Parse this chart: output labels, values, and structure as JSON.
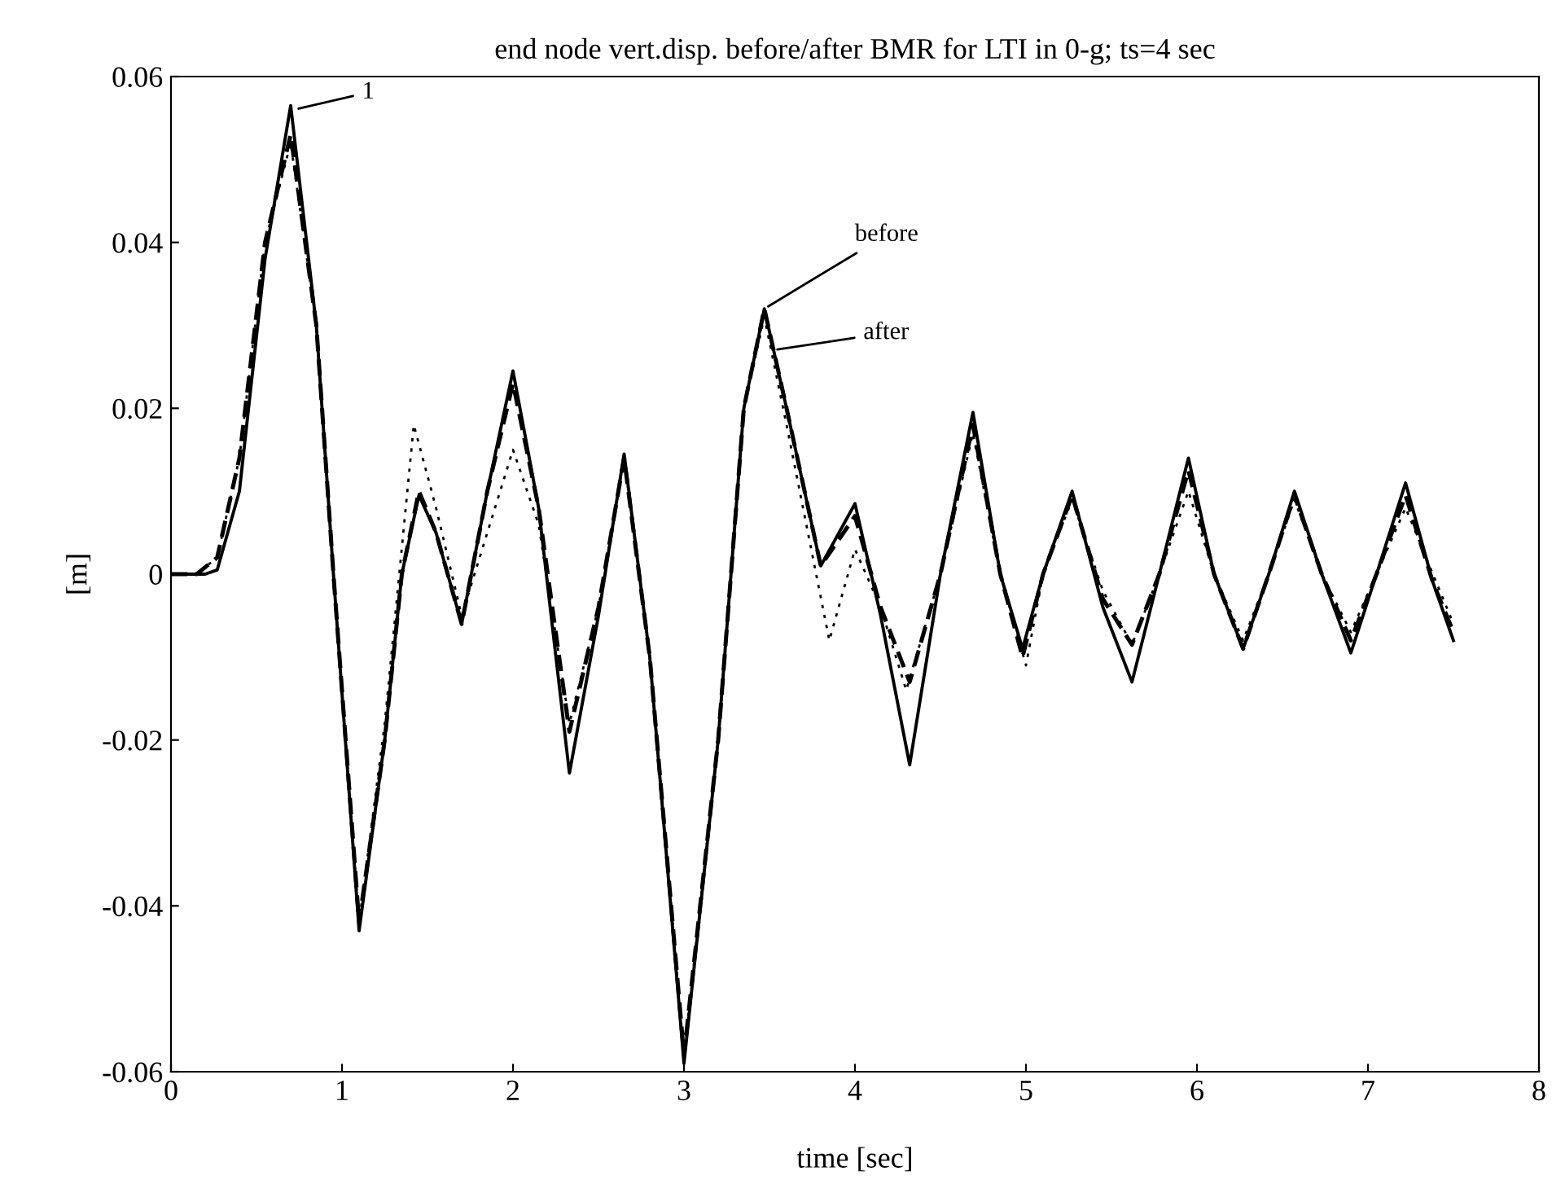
{
  "chart_data": {
    "type": "line",
    "title": "end node vert.disp. before/after BMR for LTI in 0-g; ts=4 sec",
    "xlabel": "time [sec]",
    "ylabel": "[m]",
    "xlim": [
      0,
      8
    ],
    "ylim": [
      -0.06,
      0.06
    ],
    "xticks": [
      0,
      1,
      2,
      3,
      4,
      5,
      6,
      7,
      8
    ],
    "yticks": [
      -0.06,
      -0.04,
      -0.02,
      0,
      0.02,
      0.04,
      0.06
    ],
    "grid": false,
    "legend": false,
    "series": [
      {
        "color": "#000000",
        "line_style": "solid",
        "x": [
          0,
          0.2,
          0.27,
          0.4,
          0.55,
          0.7,
          0.85,
          0.95,
          1.1,
          1.25,
          1.35,
          1.45,
          1.55,
          1.7,
          1.85,
          2.0,
          2.15,
          2.33,
          2.5,
          2.65,
          2.8,
          3.0,
          3.2,
          3.35,
          3.47,
          3.6,
          3.8,
          4.0,
          4.15,
          4.32,
          4.5,
          4.69,
          4.85,
          4.98,
          5.1,
          5.27,
          5.45,
          5.62,
          5.78,
          5.95,
          6.1,
          6.27,
          6.42,
          6.57,
          6.73,
          6.9,
          7.05,
          7.22,
          7.38,
          7.5
        ],
        "values": [
          0,
          0,
          0.0005,
          0.01,
          0.038,
          0.0565,
          0.03,
          0.0,
          -0.043,
          -0.02,
          0.0,
          0.0095,
          0.005,
          -0.006,
          0.01,
          0.0245,
          0.008,
          -0.024,
          -0.005,
          0.0145,
          -0.01,
          -0.059,
          -0.02,
          0.02,
          0.032,
          0.02,
          0.001,
          0.0085,
          -0.005,
          -0.023,
          0.0,
          0.0195,
          0.0,
          -0.009,
          0.0,
          0.01,
          -0.004,
          -0.013,
          0.0,
          0.014,
          0.0,
          -0.009,
          0.0,
          0.01,
          0.0,
          -0.0095,
          0.0,
          0.011,
          -0.001,
          -0.008
        ]
      },
      {
        "color": "#000000",
        "line_style": "dashed",
        "x": [
          0,
          0.15,
          0.27,
          0.4,
          0.55,
          0.7,
          0.85,
          0.95,
          1.1,
          1.25,
          1.35,
          1.45,
          1.55,
          1.7,
          1.85,
          2.0,
          2.15,
          2.33,
          2.5,
          2.65,
          2.8,
          3.0,
          3.2,
          3.35,
          3.47,
          3.6,
          3.8,
          4.0,
          4.15,
          4.32,
          4.5,
          4.69,
          4.85,
          4.98,
          5.1,
          5.27,
          5.45,
          5.62,
          5.78,
          5.95,
          6.1,
          6.27,
          6.42,
          6.57,
          6.73,
          6.9,
          7.05,
          7.22,
          7.38,
          7.5
        ],
        "values": [
          0,
          0,
          0.002,
          0.014,
          0.04,
          0.053,
          0.03,
          0.0,
          -0.042,
          -0.02,
          0.0,
          0.01,
          0.005,
          -0.006,
          0.01,
          0.023,
          0.008,
          -0.019,
          -0.004,
          0.014,
          -0.01,
          -0.058,
          -0.02,
          0.02,
          0.032,
          0.02,
          0.001,
          0.007,
          -0.004,
          -0.013,
          0.0,
          0.018,
          0.0,
          -0.01,
          0.0,
          0.0095,
          -0.003,
          -0.0085,
          0.0,
          0.0125,
          0.0,
          -0.009,
          0.0,
          0.0095,
          0.0,
          -0.008,
          0.0,
          0.0095,
          -0.001,
          -0.007
        ]
      },
      {
        "color": "#000000",
        "line_style": "dotted",
        "x": [
          0,
          0.15,
          0.27,
          0.4,
          0.55,
          0.7,
          0.85,
          0.95,
          1.1,
          1.25,
          1.42,
          1.55,
          1.7,
          1.85,
          2.0,
          2.15,
          2.33,
          2.5,
          2.65,
          2.8,
          3.0,
          3.2,
          3.35,
          3.47,
          3.6,
          3.85,
          4.0,
          4.15,
          4.3,
          4.5,
          4.69,
          4.85,
          5.0,
          5.1,
          5.27,
          5.45,
          5.62,
          5.78,
          5.95,
          6.1,
          6.27,
          6.42,
          6.57,
          6.73,
          6.9,
          7.05,
          7.22,
          7.38,
          7.5
        ],
        "values": [
          0,
          0,
          0.002,
          0.014,
          0.04,
          0.052,
          0.03,
          0.0,
          -0.042,
          -0.018,
          0.018,
          0.008,
          -0.005,
          0.005,
          0.015,
          0.006,
          -0.018,
          -0.004,
          0.014,
          -0.01,
          -0.058,
          -0.02,
          0.02,
          0.031,
          0.018,
          -0.008,
          0.003,
          -0.004,
          -0.014,
          0.0,
          0.017,
          0.0,
          -0.011,
          0.0,
          0.009,
          -0.002,
          -0.0085,
          0.0,
          0.01,
          0.0,
          -0.008,
          0.0,
          0.009,
          0.0,
          -0.007,
          0.0,
          0.008,
          0.0,
          -0.006
        ]
      }
    ],
    "annotations": [
      {
        "text": "1",
        "x": 0.72,
        "y": 0.056
      },
      {
        "text": "before",
        "x": 3.47,
        "y": 0.032
      },
      {
        "text": "after",
        "x": 3.52,
        "y": 0.027
      }
    ]
  }
}
